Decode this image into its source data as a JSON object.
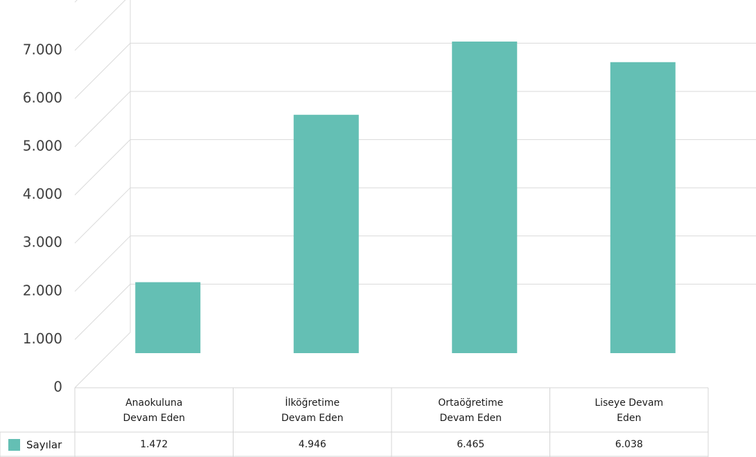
{
  "chart_data": {
    "type": "bar",
    "title": "",
    "xlabel": "",
    "ylabel": "",
    "categories": [
      [
        "Anaokuluna",
        "Devam Eden"
      ],
      [
        "İlköğretime",
        "Devam Eden"
      ],
      [
        "Ortaöğretime",
        "Devam Eden"
      ],
      [
        "Liseye Devam",
        "Eden"
      ]
    ],
    "series": [
      {
        "name": "Sayılar",
        "values": [
          1472,
          4946,
          6465,
          6038
        ],
        "labels": [
          "1.472",
          "4.946",
          "6.465",
          "6.038"
        ]
      }
    ],
    "yticks": [
      "0",
      "1.000",
      "2.000",
      "3.000",
      "4.000",
      "5.000",
      "6.000",
      "7.000"
    ],
    "ylim": [
      0,
      7000
    ],
    "grid": true,
    "style": "3d-perspective",
    "legend": "data-table-left",
    "bar_color": "#64BFB4",
    "grid_color": "#D9D9D9"
  }
}
